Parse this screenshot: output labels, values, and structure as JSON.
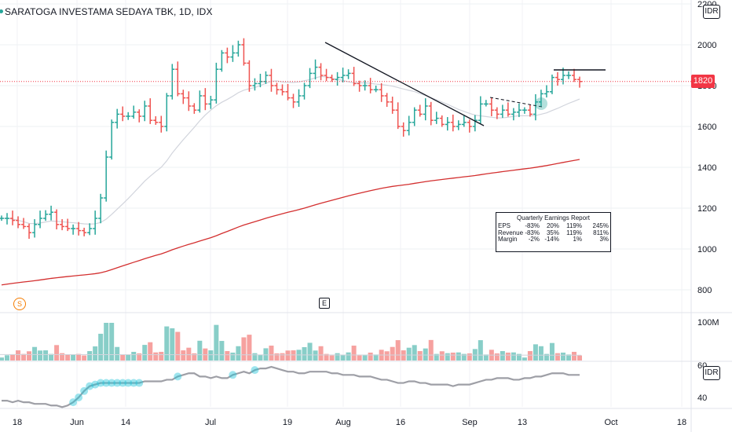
{
  "chart_data": [
    {
      "type": "bar",
      "subtype": "ohlc",
      "title": "SARATOGA INVESTAMA SEDAYA TBK, 1D, IDX",
      "currency": "IDR",
      "last_price": "1820",
      "y_ticks": [
        "2200",
        "2000",
        "1800",
        "1600",
        "1400",
        "1200",
        "1000",
        "800"
      ],
      "ylim": [
        700,
        2200
      ],
      "x_ticks": [
        "18",
        "Jun",
        "14",
        "Jul",
        "19",
        "Aug",
        "16",
        "Sep",
        "13",
        "Oct",
        "18"
      ],
      "colors": {
        "up": "#26a69a",
        "down": "#ef5350",
        "ma_short": "#d1d4dc",
        "ma_long": "#d32f2f",
        "last_price_line": "#f23645"
      },
      "price_closes": [
        1150,
        1150,
        1140,
        1120,
        1110,
        1080,
        1120,
        1150,
        1170,
        1180,
        1120,
        1110,
        1100,
        1100,
        1090,
        1080,
        1100,
        1150,
        1250,
        1450,
        1620,
        1660,
        1650,
        1650,
        1670,
        1650,
        1700,
        1630,
        1620,
        1600,
        1750,
        1880,
        1760,
        1740,
        1700,
        1680,
        1750,
        1710,
        1730,
        1880,
        1960,
        1940,
        1960,
        2000,
        1910,
        1800,
        1810,
        1820,
        1850,
        1800,
        1780,
        1770,
        1740,
        1720,
        1750,
        1800,
        1860,
        1890,
        1850,
        1840,
        1830,
        1840,
        1850,
        1860,
        1810,
        1800,
        1800,
        1780,
        1780,
        1750,
        1720,
        1680,
        1600,
        1580,
        1620,
        1680,
        1660,
        1700,
        1630,
        1640,
        1610,
        1620,
        1600,
        1610,
        1620,
        1600,
        1630,
        1710,
        1710,
        1680,
        1660,
        1680,
        1660,
        1670,
        1680,
        1680,
        1660,
        1720,
        1760,
        1770,
        1840,
        1830,
        1850,
        1850,
        1830,
        1820
      ],
      "annotations": [
        "S",
        "E"
      ],
      "earnings_table": {
        "title": "Quarterly Earnings Report",
        "rows": [
          {
            "label": "EPS",
            "values": [
              "-83%",
              "20%",
              "119%",
              "245%"
            ]
          },
          {
            "label": "Revenue",
            "values": [
              "-83%",
              "35%",
              "119%",
              "811%"
            ]
          },
          {
            "label": "Margin",
            "values": [
              "-2%",
              "-14%",
              "1%",
              "3%"
            ]
          }
        ]
      }
    },
    {
      "type": "bar",
      "subtype": "volume",
      "y_ticks": [
        "100M"
      ],
      "ylim": [
        0,
        110
      ]
    },
    {
      "type": "line",
      "subtype": "indicator",
      "currency": "IDR",
      "y_ticks": [
        "60",
        "40"
      ],
      "ylim": [
        35,
        65
      ],
      "values": [
        38,
        38,
        37,
        38,
        37,
        37,
        36,
        36,
        36,
        35,
        35,
        34,
        35,
        37,
        40,
        44,
        47,
        48,
        49,
        49,
        49,
        49,
        49,
        49,
        49,
        49,
        50,
        50,
        50,
        50,
        51,
        51,
        53,
        54,
        55,
        55,
        53,
        53,
        52,
        53,
        52,
        52,
        54,
        55,
        56,
        55,
        57,
        58,
        58,
        59,
        58,
        57,
        56,
        56,
        55,
        55,
        56,
        56,
        56,
        56,
        55,
        55,
        54,
        54,
        54,
        53,
        53,
        53,
        52,
        51,
        51,
        50,
        49,
        49,
        50,
        50,
        49,
        49,
        48,
        48,
        48,
        48,
        47,
        48,
        48,
        48,
        49,
        50,
        51,
        51,
        52,
        52,
        52,
        51,
        51,
        52,
        52,
        53,
        53,
        54,
        55,
        55,
        55,
        54,
        54,
        54
      ]
    }
  ]
}
